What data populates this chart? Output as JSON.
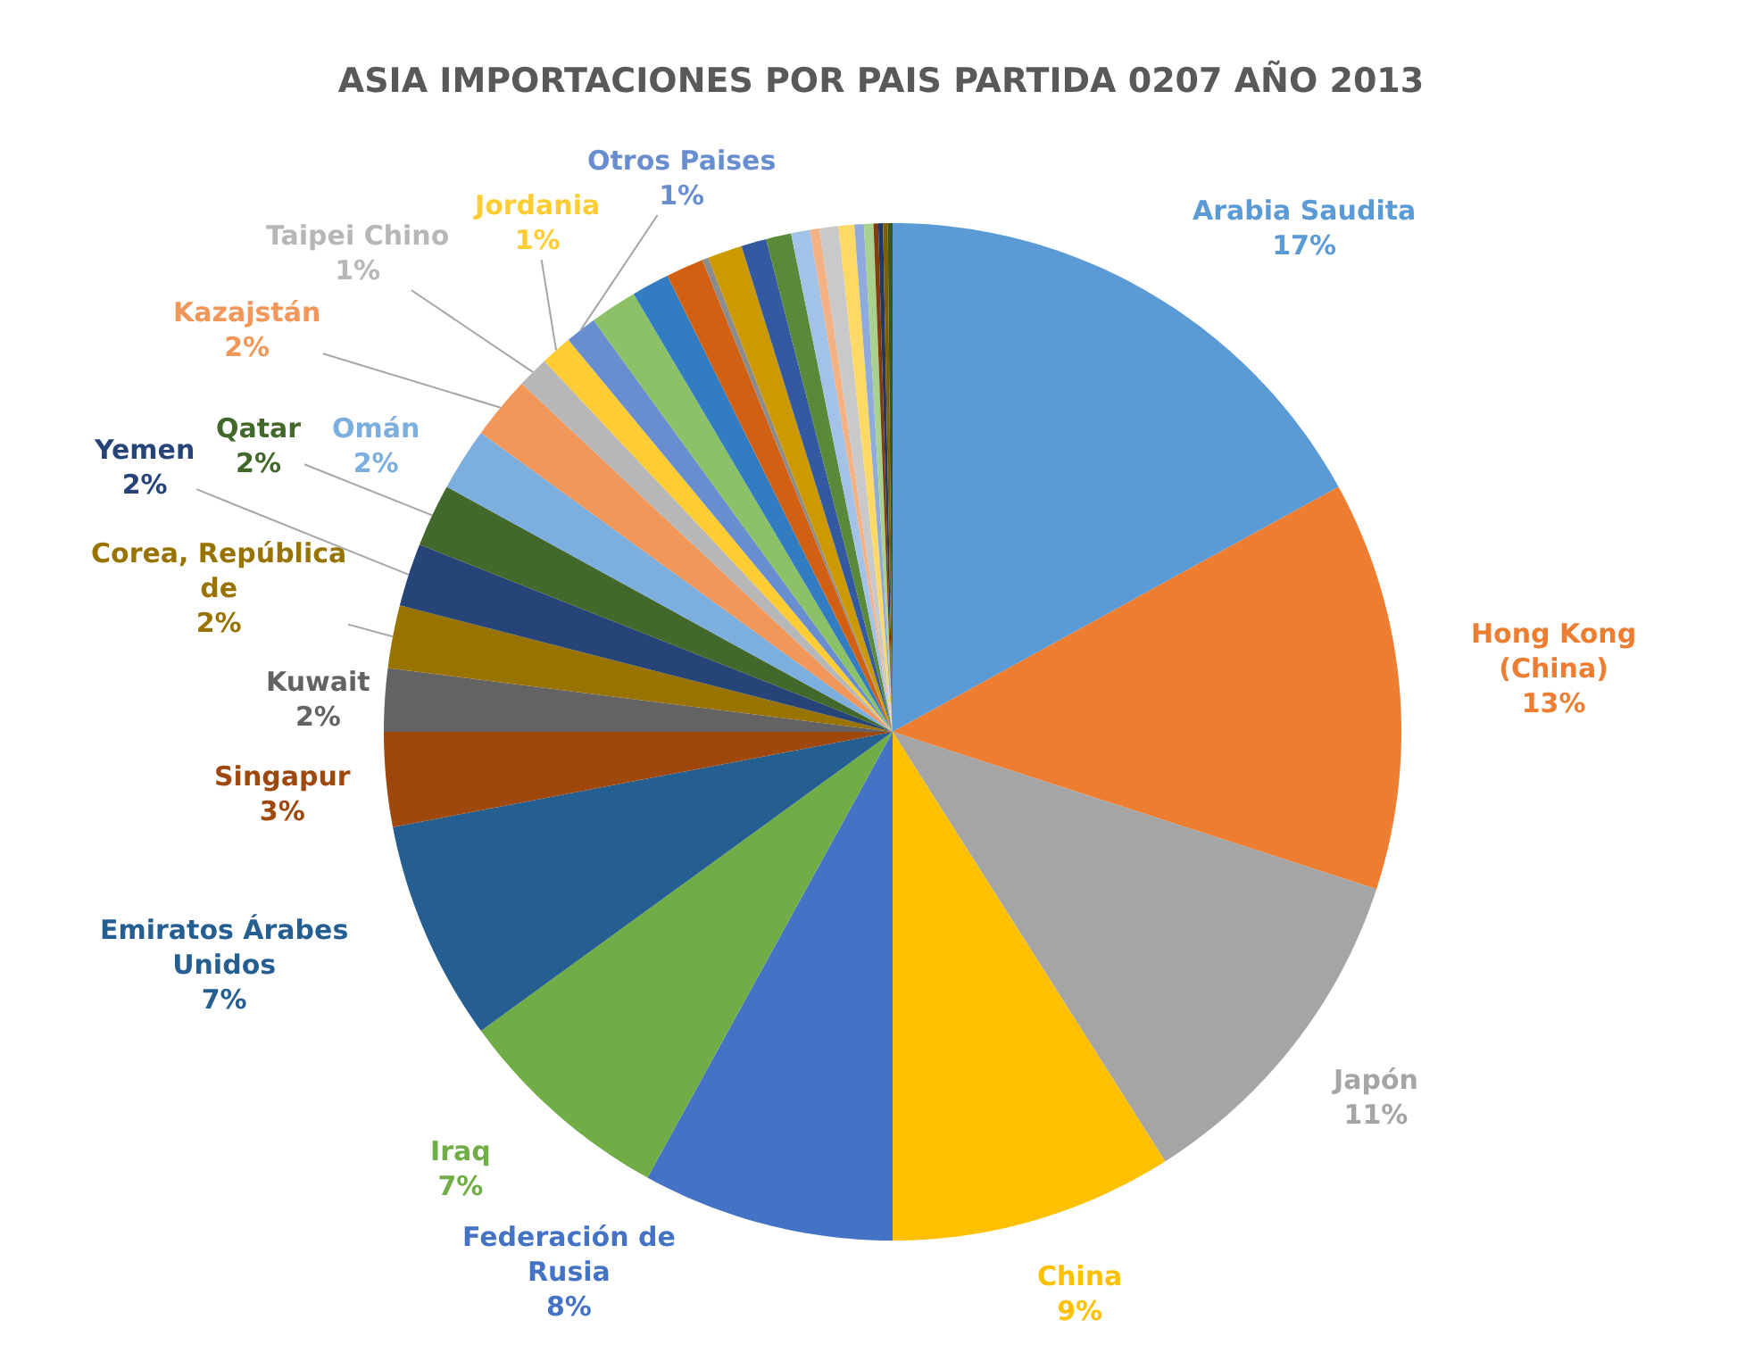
{
  "chart_data": {
    "type": "pie",
    "title": "ASIA IMPORTACIONES POR PAIS PARTIDA 0207 AÑO 2013",
    "categories": [
      "Arabia Saudita",
      "Hong Kong (China)",
      "Japón",
      "China",
      "Federación de Rusia",
      "Iraq",
      "Emiratos Árabes Unidos",
      "Singapur",
      "Kuwait",
      "Corea, República de",
      "Yemen",
      "Qatar",
      "Omán",
      "Kazajstán",
      "Taipei Chino",
      "Jordania",
      "Otros Paises",
      null,
      null,
      null,
      null,
      null,
      null,
      null,
      null,
      null,
      null,
      null,
      null,
      null,
      null,
      null,
      null,
      null
    ],
    "values": [
      17,
      13,
      11,
      9,
      8,
      7,
      7,
      3,
      2,
      2,
      2,
      2,
      2,
      2,
      1,
      1,
      1,
      1.5,
      1.2,
      1.2,
      0.2,
      1.1,
      0.8,
      0.8,
      0.6,
      0.3,
      0.6,
      0.5,
      0.3,
      0.3,
      0.15,
      0.15,
      0.15,
      0.15
    ],
    "value_labels": [
      "17%",
      "13%",
      "11%",
      "9%",
      "8%",
      "7%",
      "7%",
      "3%",
      "2%",
      "2%",
      "2%",
      "2%",
      "2%",
      "2%",
      "1%",
      "1%",
      "1%",
      null,
      null,
      null,
      null,
      null,
      null,
      null,
      null,
      null,
      null,
      null,
      null,
      null,
      null,
      null,
      null,
      null
    ],
    "colors": [
      "#5b9bd5",
      "#ed7d31",
      "#a5a5a5",
      "#ffc000",
      "#4472c4",
      "#70ad47",
      "#255e91",
      "#9e480e",
      "#636363",
      "#997300",
      "#264478",
      "#43682b",
      "#7cafdd",
      "#f1975a",
      "#b7b7b7",
      "#ffcd33",
      "#698ed0",
      "#8cc168",
      "#327dc2",
      "#d26012",
      "#8c8c8c",
      "#cc9a00",
      "#335aa1",
      "#5a8a39",
      "#a3c2e8",
      "#f4b183",
      "#c9c9c9",
      "#ffd966",
      "#8faadc",
      "#a9d18e",
      "#843c0c",
      "#1f3864",
      "#7f6000",
      "#385723"
    ],
    "legend": false
  }
}
